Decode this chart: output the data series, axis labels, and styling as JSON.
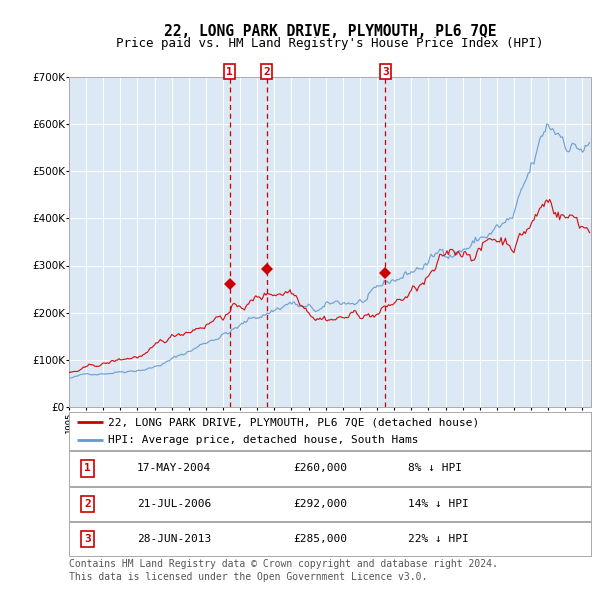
{
  "title": "22, LONG PARK DRIVE, PLYMOUTH, PL6 7QE",
  "subtitle": "Price paid vs. HM Land Registry's House Price Index (HPI)",
  "legend_property": "22, LONG PARK DRIVE, PLYMOUTH, PL6 7QE (detached house)",
  "legend_hpi": "HPI: Average price, detached house, South Hams",
  "footnote1": "Contains HM Land Registry data © Crown copyright and database right 2024.",
  "footnote2": "This data is licensed under the Open Government Licence v3.0.",
  "sales": [
    {
      "label": "1",
      "date_str": "17-MAY-2004",
      "date_x": 2004.38,
      "price": 260000,
      "pct": "8%",
      "dir": "↓"
    },
    {
      "label": "2",
      "date_str": "21-JUL-2006",
      "date_x": 2006.55,
      "price": 292000,
      "pct": "14%",
      "dir": "↓"
    },
    {
      "label": "3",
      "date_str": "28-JUN-2013",
      "date_x": 2013.49,
      "price": 285000,
      "pct": "22%",
      "dir": "↓"
    }
  ],
  "ylim": [
    0,
    700000
  ],
  "xlim_start": 1995.0,
  "xlim_end": 2025.5,
  "background_color": "#dce9f5",
  "grid_color": "#ffffff",
  "red_line_color": "#cc0000",
  "blue_line_color": "#6699cc",
  "sale_marker_color": "#cc0000",
  "vline_color": "#cc0000",
  "box_color": "#cc0000",
  "title_fontsize": 10.5,
  "subtitle_fontsize": 9,
  "axis_fontsize": 7.5,
  "legend_fontsize": 8,
  "table_fontsize": 8,
  "footnote_fontsize": 7
}
